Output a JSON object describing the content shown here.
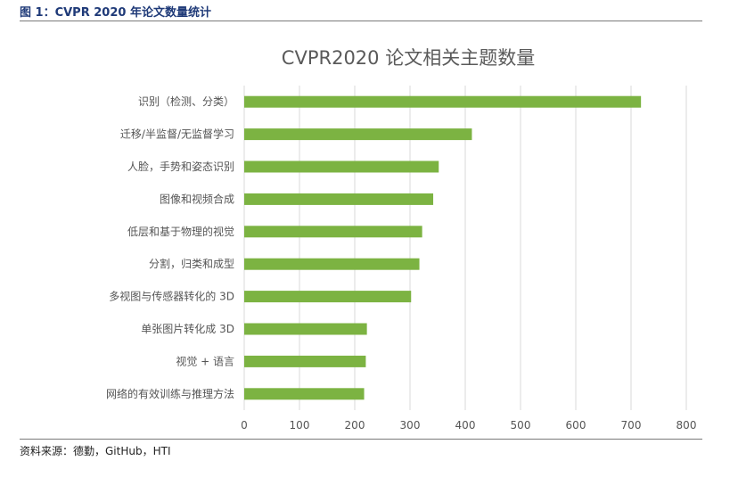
{
  "figure": {
    "caption": "图 1：CVPR 2020 年论文数量统计",
    "source": "资料来源：德勤，GitHub，HTI"
  },
  "colors": {
    "bar": "#7cb342",
    "grid": "#d9d9d9",
    "caption": "#1f3a78"
  },
  "chart_data": {
    "type": "bar",
    "orientation": "horizontal",
    "title": "CVPR2020 论文相关主题数量",
    "categories": [
      "识别（检测、分类）",
      "迁移/半监督/无监督学习",
      "人脸，手势和姿态识别",
      "图像和视频合成",
      "低层和基于物理的视觉",
      "分割，归类和成型",
      "多视图与传感器转化的 3D",
      "单张图片转化成 3D",
      "视觉 + 语言",
      "网络的有效训练与推理方法"
    ],
    "values": [
      718,
      412,
      352,
      342,
      322,
      317,
      302,
      222,
      220,
      217
    ],
    "xlim": [
      0,
      800
    ],
    "xticks": [
      "0",
      "100",
      "200",
      "300",
      "400",
      "500",
      "600",
      "700",
      "800"
    ],
    "grid": true,
    "legend": "none"
  }
}
